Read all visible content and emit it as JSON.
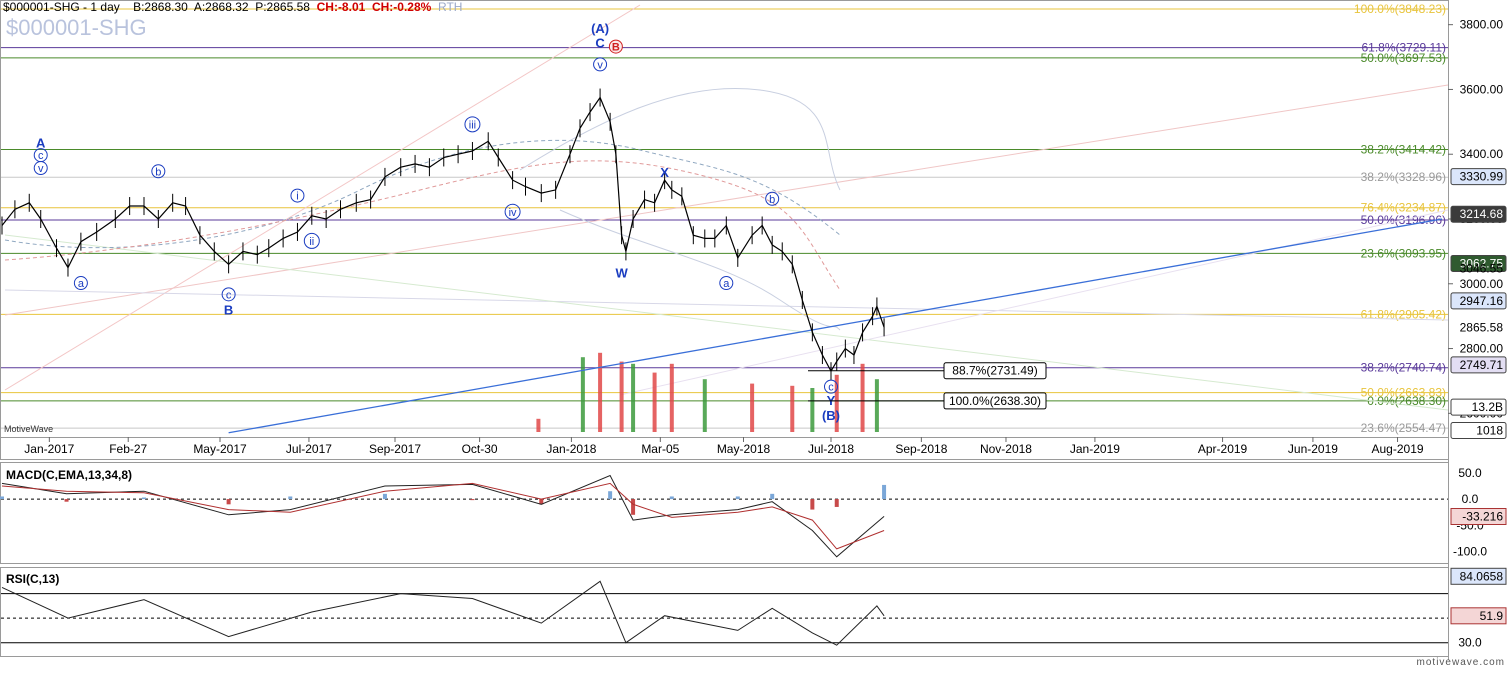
{
  "header": {
    "symbol": "$000001-SHG - 1 day",
    "bid": "B:2868.30",
    "ask": "A:2868.32",
    "price": "P:2865.58",
    "change": "CH:-8.01",
    "change_pct": "CH:-0.28%",
    "session": "RTH",
    "watermark": "$000001-SHG"
  },
  "brand": "MotiveWave",
  "footer": "motivewave.com",
  "colors": {
    "price_bars": "#000000",
    "wave_labels": "#1a3cc0",
    "trendline": "#3a6fd8",
    "down_volume": "#e04848",
    "up_volume": "#3c9a3c",
    "macd_line": "#222222",
    "signal_line": "#b03030",
    "rsi_line": "#222222"
  },
  "chart_data": [
    {
      "type": "line",
      "name": "price",
      "x_axis_labels": [
        "Jan-2017",
        "Feb-27",
        "May-2017",
        "Jul-2017",
        "Sep-2017",
        "Oct-30",
        "Jan-2018",
        "Mar-05",
        "May-2018",
        "Jul-2018",
        "Sep-2018",
        "Nov-2018",
        "Jan-2019",
        "Apr-2019",
        "Jun-2019",
        "Aug-2019"
      ],
      "y_ticks": [
        2600.0,
        2800.0,
        3000.0,
        3200.0,
        3400.0,
        3600.0,
        3800.0
      ],
      "ylim": [
        2530,
        3870
      ],
      "x": [
        "2016-12-01",
        "2016-12-10",
        "2016-12-20",
        "2016-12-28",
        "2017-01-08",
        "2017-01-16",
        "2017-01-25",
        "2017-02-05",
        "2017-02-18",
        "2017-02-28",
        "2017-03-10",
        "2017-03-20",
        "2017-03-30",
        "2017-04-08",
        "2017-04-18",
        "2017-04-28",
        "2017-05-08",
        "2017-05-18",
        "2017-05-28",
        "2017-06-05",
        "2017-06-15",
        "2017-06-25",
        "2017-07-05",
        "2017-07-15",
        "2017-07-25",
        "2017-08-05",
        "2017-08-15",
        "2017-08-25",
        "2017-09-05",
        "2017-09-15",
        "2017-09-25",
        "2017-10-05",
        "2017-10-15",
        "2017-10-25",
        "2017-11-05",
        "2017-11-12",
        "2017-11-22",
        "2017-12-01",
        "2017-12-12",
        "2017-12-22",
        "2018-01-01",
        "2018-01-08",
        "2018-01-15",
        "2018-01-22",
        "2018-01-29",
        "2018-02-02",
        "2018-02-06",
        "2018-02-09",
        "2018-02-14",
        "2018-02-22",
        "2018-03-01",
        "2018-03-08",
        "2018-03-13",
        "2018-03-20",
        "2018-03-28",
        "2018-04-05",
        "2018-04-12",
        "2018-04-20",
        "2018-04-28",
        "2018-05-08",
        "2018-05-15",
        "2018-05-22",
        "2018-05-29",
        "2018-06-05",
        "2018-06-12",
        "2018-06-19",
        "2018-06-26",
        "2018-07-02",
        "2018-07-06",
        "2018-07-12",
        "2018-07-18",
        "2018-07-24",
        "2018-07-31",
        "2018-08-03",
        "2018-08-08"
      ],
      "y": [
        3180,
        3230,
        3250,
        3200,
        3110,
        3050,
        3130,
        3160,
        3200,
        3240,
        3240,
        3200,
        3250,
        3240,
        3150,
        3100,
        3060,
        3100,
        3090,
        3110,
        3140,
        3160,
        3210,
        3200,
        3230,
        3250,
        3260,
        3330,
        3360,
        3370,
        3360,
        3390,
        3400,
        3410,
        3440,
        3390,
        3320,
        3300,
        3280,
        3290,
        3400,
        3480,
        3530,
        3575,
        3500,
        3400,
        3150,
        3100,
        3200,
        3260,
        3250,
        3320,
        3290,
        3270,
        3150,
        3140,
        3140,
        3180,
        3080,
        3150,
        3180,
        3120,
        3100,
        3060,
        2950,
        2850,
        2780,
        2730,
        2760,
        2800,
        2780,
        2850,
        2900,
        2930,
        2865.58
      ],
      "price_axis_tags": [
        {
          "label": "3330.99",
          "value": 3330.99,
          "style": "box-blue"
        },
        {
          "label": "3214.68",
          "value": 3214.68,
          "style": "box-dark"
        },
        {
          "label": "3062.75",
          "value": 3062.75,
          "style": "box-green"
        },
        {
          "label": "3046.55",
          "value": 3046.55,
          "style": "plain"
        },
        {
          "label": "2947.16",
          "value": 2947.16,
          "style": "box-blue"
        },
        {
          "label": "2865.58",
          "value": 2865.58,
          "style": "plain"
        },
        {
          "label": "2749.71",
          "value": 2749.71,
          "style": "box-purple"
        },
        {
          "label": "13.2B",
          "value": 2619,
          "style": "box-plain"
        },
        {
          "label": "1018",
          "value": 2547,
          "style": "box-plain"
        }
      ],
      "fib_levels": [
        {
          "label": "100.0%(3848.23)",
          "value": 3848.23,
          "color": "#e8c43c"
        },
        {
          "label": "61.8%(3729.11)",
          "value": 3729.11,
          "color": "#5a3a9a"
        },
        {
          "label": "50.0%(3697.53)",
          "value": 3697.53,
          "color": "#4a8a2a"
        },
        {
          "label": "38.2%(3414.42)",
          "value": 3414.42,
          "color": "#4a8a2a"
        },
        {
          "label": "38.2%(3328.96)",
          "value": 3328.96,
          "color": "#c8c8c8"
        },
        {
          "label": "76.4%(3234.87)",
          "value": 3234.87,
          "color": "#e8c43c"
        },
        {
          "label": "50.0%(3196.96)",
          "value": 3196.96,
          "color": "#5a3a9a"
        },
        {
          "label": "23.6%(3093.95)",
          "value": 3093.95,
          "color": "#4a8a2a"
        },
        {
          "label": "61.8%(2905.42)",
          "value": 2905.42,
          "color": "#e8c43c"
        },
        {
          "label": "38.2%(2740.74)",
          "value": 2740.74,
          "color": "#5a3a9a"
        },
        {
          "label": "50.0%(2663.83)",
          "value": 2663.83,
          "color": "#e8c43c"
        },
        {
          "label": "0.0%(2638.30)",
          "value": 2638.3,
          "color": "#4a8a2a"
        },
        {
          "label": "23.6%(2554.47)",
          "value": 2554.47,
          "color": "#c8c8c8"
        }
      ],
      "boxed_levels": [
        {
          "label": "88.7%(2731.49)",
          "value": 2731.49
        },
        {
          "label": "100.0%(2638.30)",
          "value": 2638.3
        }
      ],
      "wave_labels": [
        {
          "text": "A",
          "x": "2016-12-28",
          "y": 3420
        },
        {
          "text": "c",
          "x": "2016-12-28",
          "y": 3385,
          "circled": true
        },
        {
          "text": "v",
          "x": "2016-12-28",
          "y": 3345,
          "circled": true
        },
        {
          "text": "a",
          "x": "2017-01-25",
          "y": 2990,
          "circled": true
        },
        {
          "text": "b",
          "x": "2017-03-20",
          "y": 3335,
          "circled": true
        },
        {
          "text": "c",
          "x": "2017-05-08",
          "y": 2955,
          "circled": true
        },
        {
          "text": "B",
          "x": "2017-05-08",
          "y": 2905
        },
        {
          "text": "i",
          "x": "2017-06-25",
          "y": 3260,
          "circled": true
        },
        {
          "text": "ii",
          "x": "2017-07-05",
          "y": 3120,
          "circled": true
        },
        {
          "text": "iii",
          "x": "2017-10-25",
          "y": 3480,
          "circled": true
        },
        {
          "text": "iv",
          "x": "2017-11-22",
          "y": 3210,
          "circled": true
        },
        {
          "text": "(A)",
          "x": "2018-01-22",
          "y": 3775
        },
        {
          "text": "C",
          "x": "2018-01-22",
          "y": 3730
        },
        {
          "text": "v",
          "x": "2018-01-22",
          "y": 3665,
          "circled": true
        },
        {
          "text": "B",
          "x": "2018-02-02",
          "y": 3720,
          "circled": true,
          "red": true
        },
        {
          "text": "W",
          "x": "2018-02-06",
          "y": 3020
        },
        {
          "text": "X",
          "x": "2018-03-08",
          "y": 3330
        },
        {
          "text": "a",
          "x": "2018-04-20",
          "y": 2990,
          "circled": true
        },
        {
          "text": "b",
          "x": "2018-05-22",
          "y": 3250,
          "circled": true
        },
        {
          "text": "c",
          "x": "2018-07-02",
          "y": 2670,
          "circled": true
        },
        {
          "text": "Y",
          "x": "2018-07-02",
          "y": 2625
        },
        {
          "text": "(B)",
          "x": "2018-07-02",
          "y": 2580
        }
      ],
      "trendline": {
        "x": [
          "2017-05-08",
          "2019-09-01"
        ],
        "y": [
          2540,
          3200
        ]
      }
    },
    {
      "type": "bar",
      "name": "volume",
      "x": [
        "2017-12-10",
        "2018-01-10",
        "2018-01-22",
        "2018-02-06",
        "2018-02-14",
        "2018-03-01",
        "2018-03-13",
        "2018-04-05",
        "2018-05-08",
        "2018-06-05",
        "2018-06-19",
        "2018-07-06",
        "2018-07-24",
        "2018-08-03"
      ],
      "values": [
        0.6,
        3.4,
        3.6,
        3.2,
        3.1,
        2.7,
        3.1,
        2.4,
        2.2,
        2.1,
        2.0,
        2.6,
        3.1,
        2.4
      ],
      "unit": "relative"
    },
    {
      "type": "line",
      "title": "MACD(C,EMA,13,34,8)",
      "y_ticks": [
        50.0,
        0.0,
        -50.0,
        -100.0
      ],
      "ylim": [
        -120,
        65
      ],
      "current_value": "-33.216",
      "x": [
        "2016-12-01",
        "2017-01-15",
        "2017-03-10",
        "2017-05-08",
        "2017-06-20",
        "2017-08-25",
        "2017-10-25",
        "2017-12-12",
        "2018-01-29",
        "2018-02-14",
        "2018-03-13",
        "2018-04-28",
        "2018-05-22",
        "2018-06-19",
        "2018-07-06",
        "2018-08-08"
      ],
      "macd": [
        30,
        10,
        15,
        -30,
        -20,
        25,
        28,
        -10,
        45,
        -40,
        -30,
        -20,
        -5,
        -60,
        -110,
        -33
      ],
      "signal": [
        25,
        15,
        12,
        -20,
        -25,
        15,
        30,
        0,
        30,
        -10,
        -35,
        -25,
        -15,
        -40,
        -95,
        -60
      ]
    },
    {
      "type": "line",
      "title": "RSI(C,13)",
      "y_ticks": [
        30.0
      ],
      "ylim": [
        20,
        90
      ],
      "current_value": "51.9",
      "upper_tag": "84.0658",
      "x": [
        "2016-12-01",
        "2017-01-16",
        "2017-03-10",
        "2017-05-08",
        "2017-07-05",
        "2017-09-05",
        "2017-10-25",
        "2017-12-12",
        "2018-01-22",
        "2018-02-09",
        "2018-03-08",
        "2018-04-28",
        "2018-05-22",
        "2018-06-19",
        "2018-07-06",
        "2018-08-03",
        "2018-08-08"
      ],
      "values": [
        75,
        50,
        65,
        35,
        55,
        70,
        66,
        46,
        80,
        30,
        52,
        40,
        58,
        38,
        28,
        60,
        51.9
      ]
    }
  ]
}
